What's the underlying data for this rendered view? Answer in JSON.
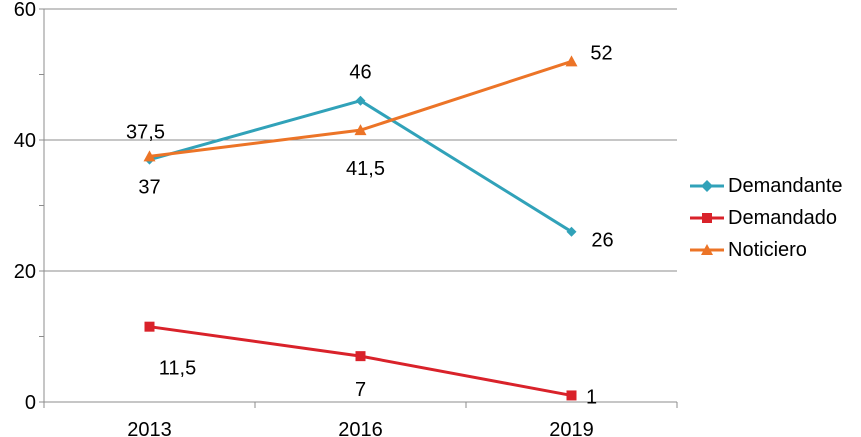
{
  "chart_data": {
    "type": "line",
    "categories": [
      "2013",
      "2016",
      "2019"
    ],
    "series": [
      {
        "name": "Demandante",
        "values": [
          37,
          46,
          26
        ],
        "labels": [
          "37",
          "46",
          "26"
        ],
        "color": "#31A2B9",
        "marker": "diamond"
      },
      {
        "name": "Demandado",
        "values": [
          11.5,
          7,
          1
        ],
        "labels": [
          "11,5",
          "7",
          "1"
        ],
        "color": "#D9222A",
        "marker": "square"
      },
      {
        "name": "Noticiero",
        "values": [
          37.5,
          41.5,
          52
        ],
        "labels": [
          "37,5",
          "41,5",
          "52"
        ],
        "color": "#EC7427",
        "marker": "triangle"
      }
    ],
    "y_ticks": [
      "0",
      "20",
      "40",
      "60"
    ],
    "ylim": [
      0,
      60
    ],
    "grid": "horizontal",
    "legend_position": "right"
  }
}
